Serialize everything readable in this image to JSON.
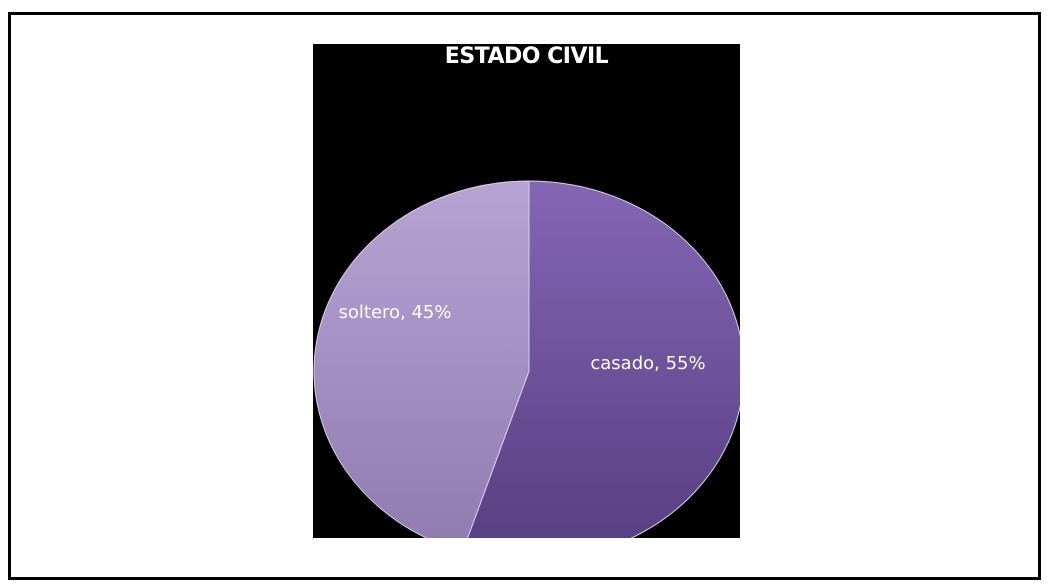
{
  "chart_data": {
    "type": "pie",
    "title": "ESTADO CIVIL",
    "categories": [
      "casado",
      "soltero"
    ],
    "values": [
      55,
      45
    ],
    "data_labels": [
      "casado, 55%",
      "soltero, 45%"
    ],
    "colors": [
      "#6e4f9c",
      "#a893c6"
    ],
    "legend": "none"
  },
  "colors": {
    "panel_background": "#000000",
    "page_background": "#ffffff",
    "frame_border": "#000000"
  }
}
